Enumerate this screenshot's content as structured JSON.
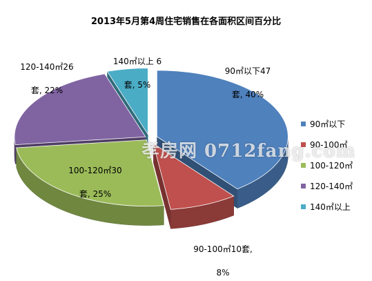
{
  "chart_data": {
    "type": "pie",
    "title": "2013年5月第4周住宅销售在各面积区间百分比",
    "unit": "套",
    "slices": [
      {
        "name": "90㎡以下",
        "value": 47,
        "percent": 40,
        "color": "#4f81bd",
        "label_line1": "90㎡以下47",
        "label_line2": "套, 40%"
      },
      {
        "name": "90-100㎡",
        "value": 10,
        "percent": 8,
        "color": "#c0504d",
        "label_line1": "90-100㎡10套,",
        "label_line2": "8%"
      },
      {
        "name": "100-120㎡",
        "value": 30,
        "percent": 25,
        "color": "#9bbb59",
        "label_line1": "100-120㎡30",
        "label_line2": "套, 25%"
      },
      {
        "name": "120-140㎡",
        "value": 26,
        "percent": 22,
        "color": "#8064a2",
        "label_line1": "120-140㎡26",
        "label_line2": "套, 22%"
      },
      {
        "name": "140㎡以上",
        "value": 6,
        "percent": 5,
        "color": "#4bacc6",
        "label_line1": "140㎡以上 6",
        "label_line2": "套, 5%"
      }
    ],
    "legend_position": "right"
  },
  "watermark": "孝房网 0712fang.com"
}
